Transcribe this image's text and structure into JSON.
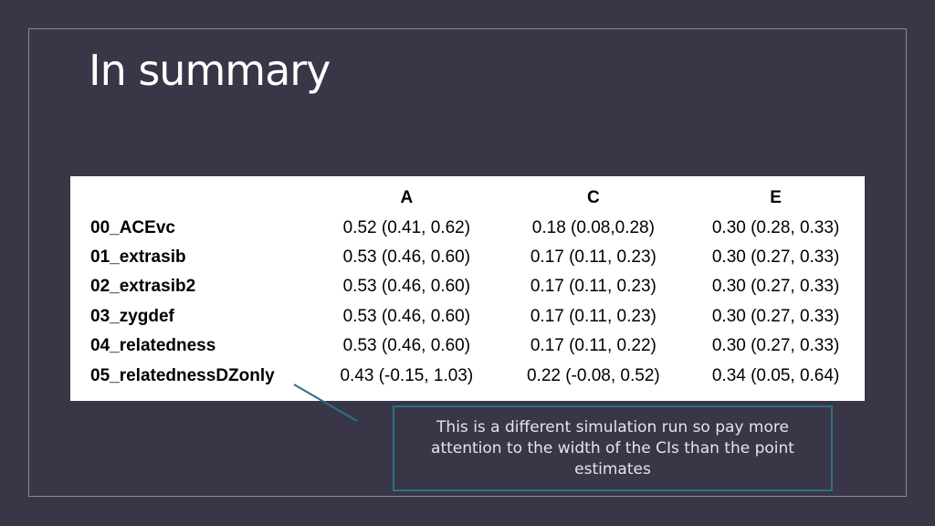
{
  "slide": {
    "title": "In summary"
  },
  "table": {
    "headers": [
      "",
      "A",
      "C",
      "E"
    ],
    "rows": [
      {
        "model": "00_ACEvc",
        "A": "0.52 (0.41, 0.62)",
        "C": "0.18 (0.08,0.28)",
        "E": "0.30 (0.28, 0.33)"
      },
      {
        "model": "01_extrasib",
        "A": "0.53 (0.46, 0.60)",
        "C": "0.17 (0.11, 0.23)",
        "E": "0.30 (0.27, 0.33)"
      },
      {
        "model": "02_extrasib2",
        "A": "0.53 (0.46, 0.60)",
        "C": "0.17 (0.11, 0.23)",
        "E": "0.30 (0.27, 0.33)"
      },
      {
        "model": "03_zygdef",
        "A": "0.53 (0.46, 0.60)",
        "C": "0.17 (0.11, 0.23)",
        "E": "0.30 (0.27, 0.33)"
      },
      {
        "model": "04_relatedness",
        "A": "0.53 (0.46, 0.60)",
        "C": "0.17 (0.11, 0.22)",
        "E": "0.30 (0.27, 0.33)"
      },
      {
        "model": "05_relatednessDZonly",
        "A": "0.43 (-0.15, 1.03)",
        "C": "0.22 (-0.08, 0.52)",
        "E": "0.34 (0.05, 0.64)"
      }
    ]
  },
  "callout": {
    "text": "This is a different simulation run so pay more attention to the width of the CIs than the point estimates"
  },
  "colors": {
    "background": "#393648",
    "frame": "#8a8796",
    "callout_border": "#2e6f84",
    "connector": "#2e6f84"
  }
}
